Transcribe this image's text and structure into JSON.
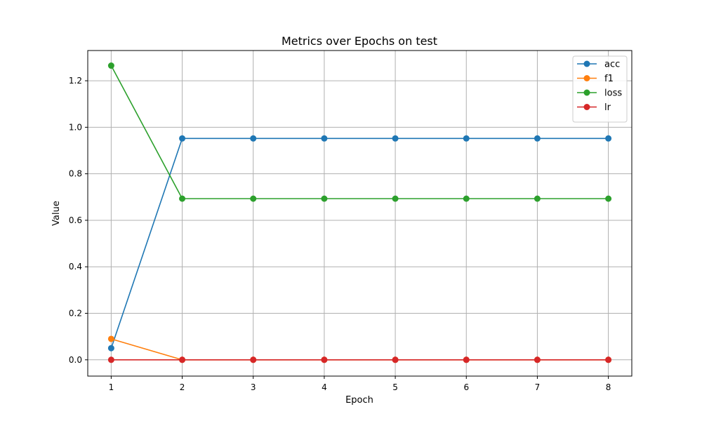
{
  "chart_data": {
    "type": "line",
    "title": "Metrics over Epochs on test",
    "xlabel": "Epoch",
    "ylabel": "Value",
    "x": [
      1,
      2,
      3,
      4,
      5,
      6,
      7,
      8
    ],
    "xlim": [
      0.67,
      8.33
    ],
    "ylim": [
      -0.07,
      1.33
    ],
    "xticks": [
      1,
      2,
      3,
      4,
      5,
      6,
      7,
      8
    ],
    "yticks": [
      0.0,
      0.2,
      0.4,
      0.6,
      0.8,
      1.0,
      1.2
    ],
    "ytick_labels": [
      "0.0",
      "0.2",
      "0.4",
      "0.6",
      "0.8",
      "1.0",
      "1.2"
    ],
    "grid": true,
    "legend_position": "top-right",
    "series": [
      {
        "name": "acc",
        "color": "#1f77b4",
        "values": [
          0.05,
          0.952,
          0.952,
          0.952,
          0.952,
          0.952,
          0.952,
          0.952
        ]
      },
      {
        "name": "f1",
        "color": "#ff7f0e",
        "values": [
          0.09,
          0.0,
          0.0,
          0.0,
          0.0,
          0.0,
          0.0,
          0.0
        ]
      },
      {
        "name": "loss",
        "color": "#2ca02c",
        "values": [
          1.265,
          0.693,
          0.693,
          0.693,
          0.693,
          0.693,
          0.693,
          0.693
        ]
      },
      {
        "name": "lr",
        "color": "#d62728",
        "values": [
          0.0,
          0.0,
          0.0,
          0.0,
          0.0,
          0.0,
          0.0,
          0.0
        ]
      }
    ]
  }
}
